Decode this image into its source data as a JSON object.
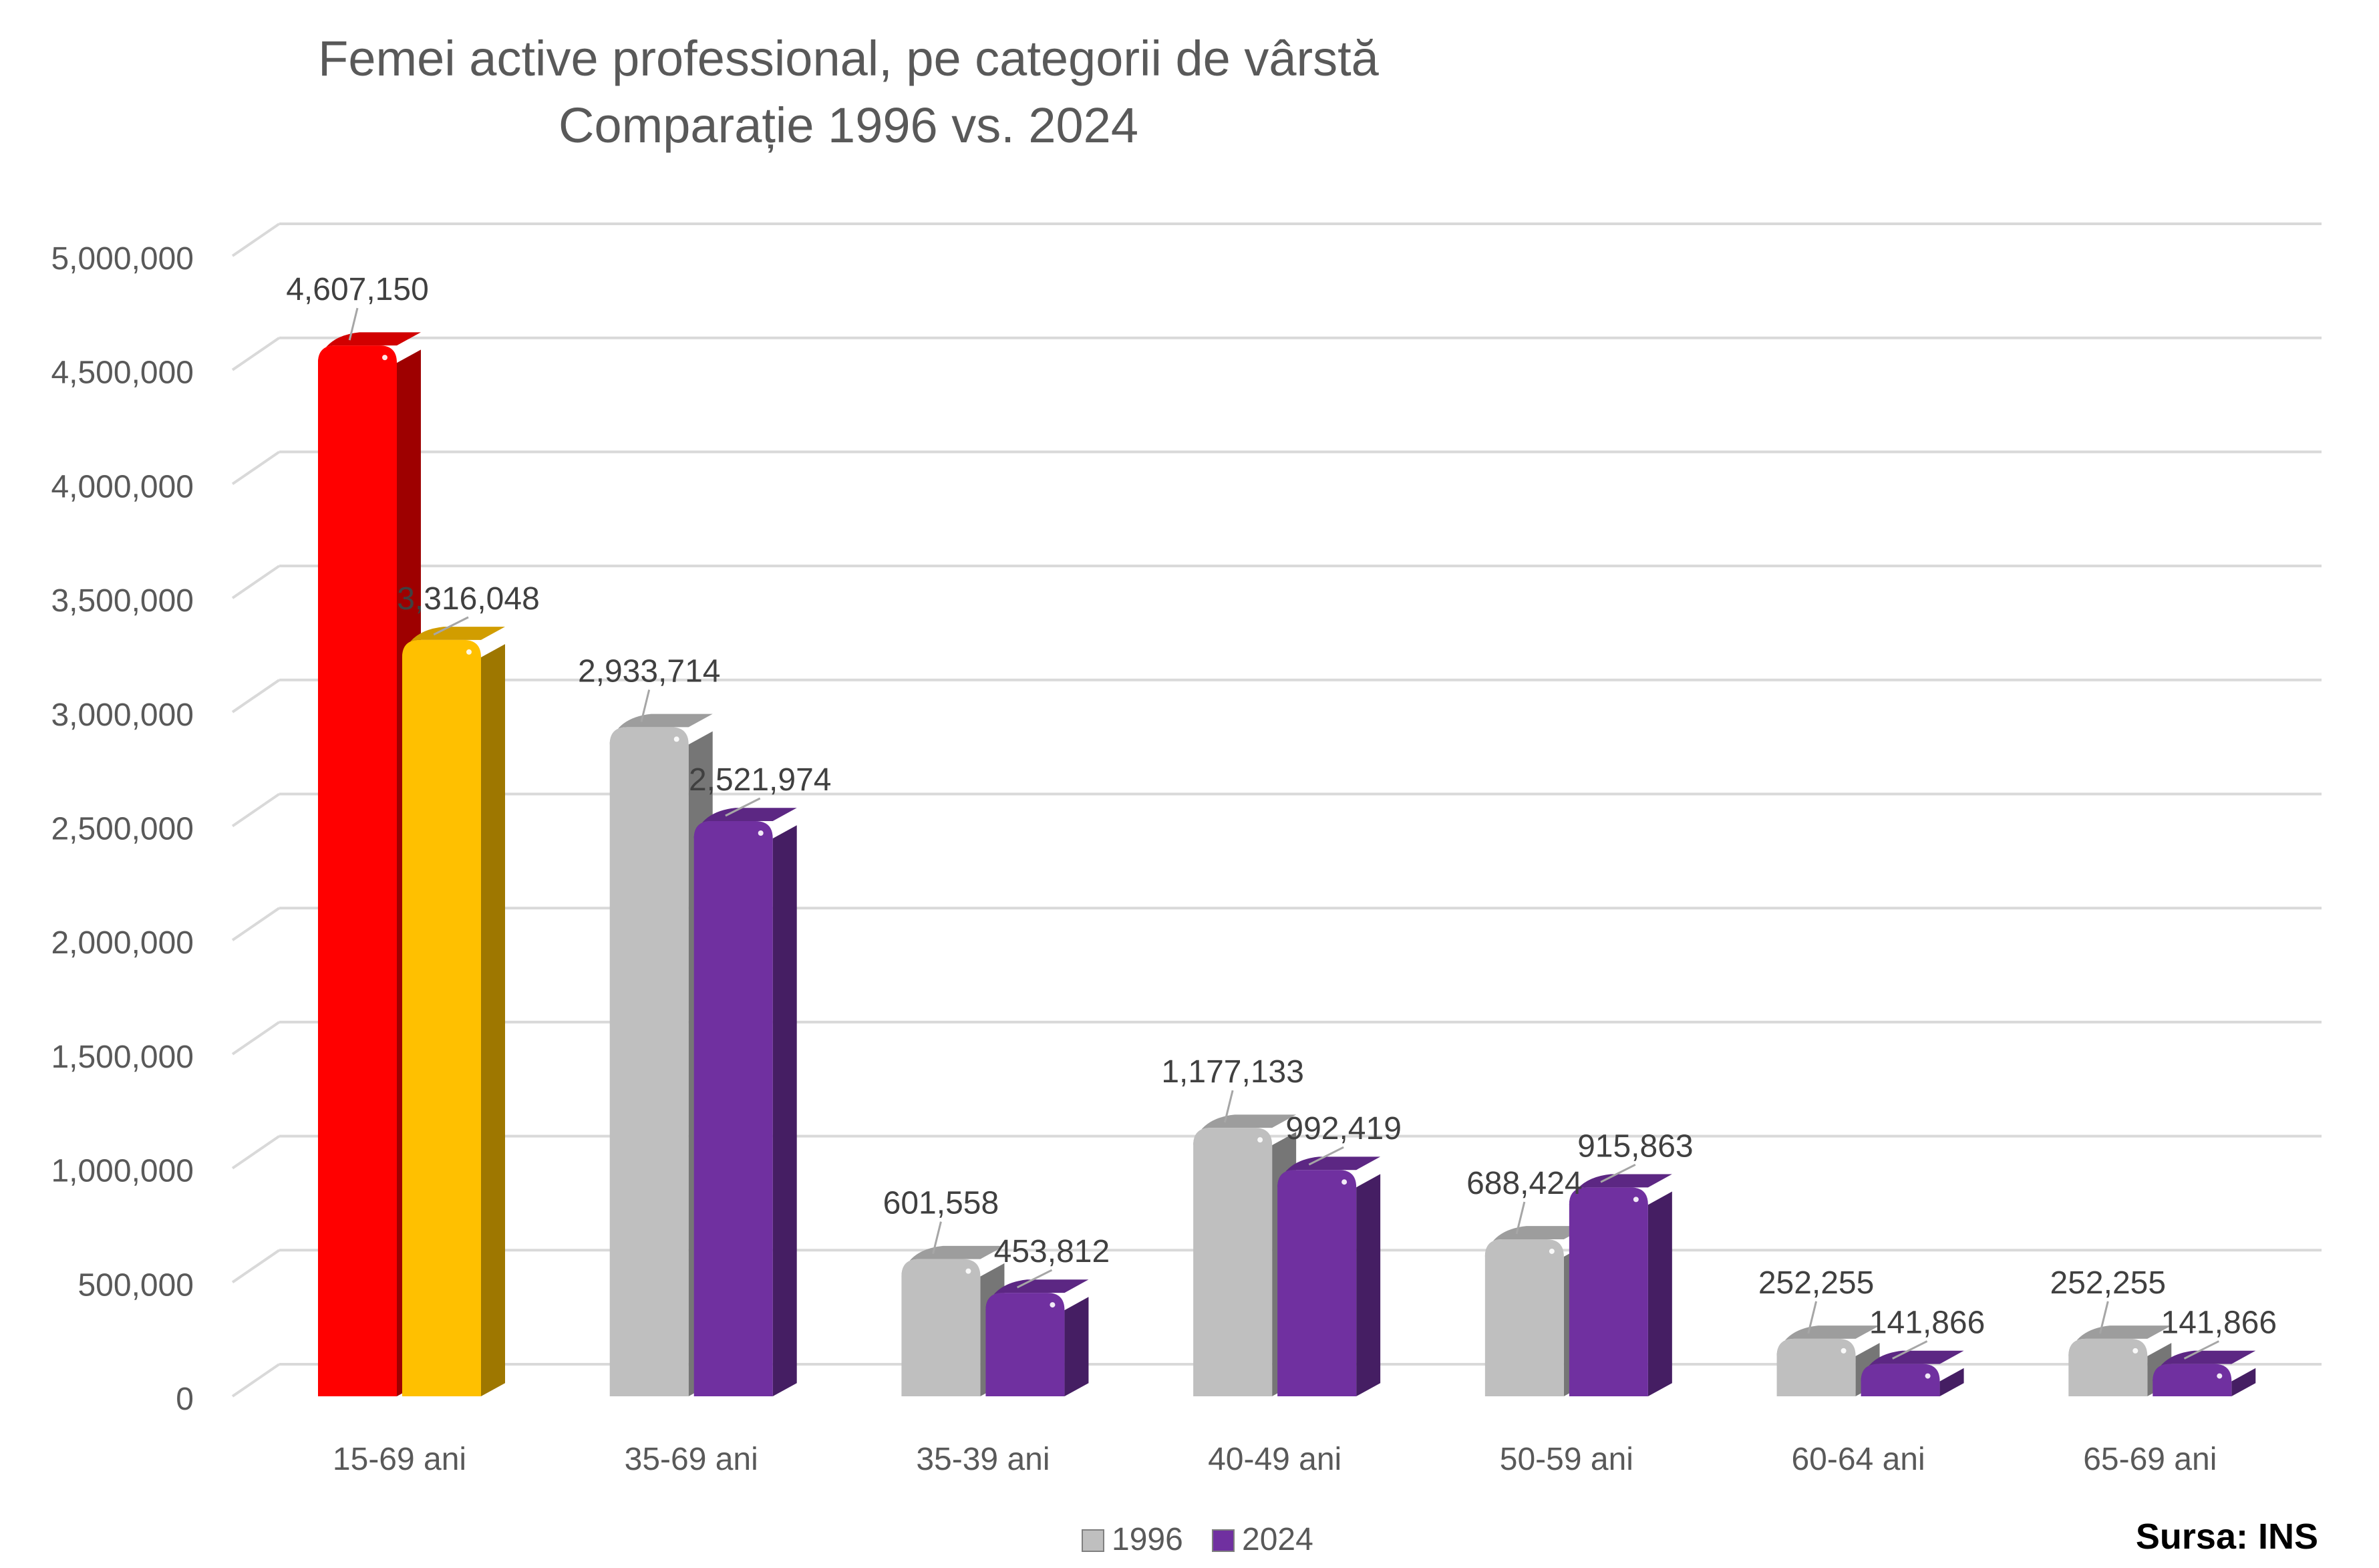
{
  "chart_data": {
    "type": "bar",
    "title": "Femei active professional, pe categorii de vârstă",
    "subtitle": "Comparație 1996 vs. 2024",
    "categories": [
      "15-69 ani",
      "35-69 ani",
      "35-39 ani",
      "40-49 ani",
      "50-59 ani",
      "60-64 ani",
      "65-69 ani"
    ],
    "series": [
      {
        "name": "1996",
        "color": "#BFBFBF",
        "values": [
          4607150,
          2933714,
          601558,
          1177133,
          688424,
          252255,
          252255
        ],
        "labels": [
          "4,607,150",
          "2,933,714",
          "601,558",
          "1,177,133",
          "688,424",
          "252,255",
          "252,255"
        ]
      },
      {
        "name": "2024",
        "color": "#7030A0",
        "values": [
          3316048,
          2521974,
          453812,
          992419,
          915863,
          141866,
          141866
        ],
        "labels": [
          "3,316,048",
          "2,521,974",
          "453,812",
          "992,419",
          "915,863",
          "141,866",
          "141,866"
        ]
      }
    ],
    "highlight": {
      "category_index": 0,
      "colors": [
        "#FF0000",
        "#FFC000"
      ]
    },
    "y_ticks": [
      "0",
      "500,000",
      "1,000,000",
      "1,500,000",
      "2,000,000",
      "2,500,000",
      "3,000,000",
      "3,500,000",
      "4,000,000",
      "4,500,000",
      "5,000,000"
    ],
    "ylim": [
      0,
      5000000
    ],
    "grid": true,
    "legend": "bottom"
  },
  "source_note": "Sursa: INS"
}
